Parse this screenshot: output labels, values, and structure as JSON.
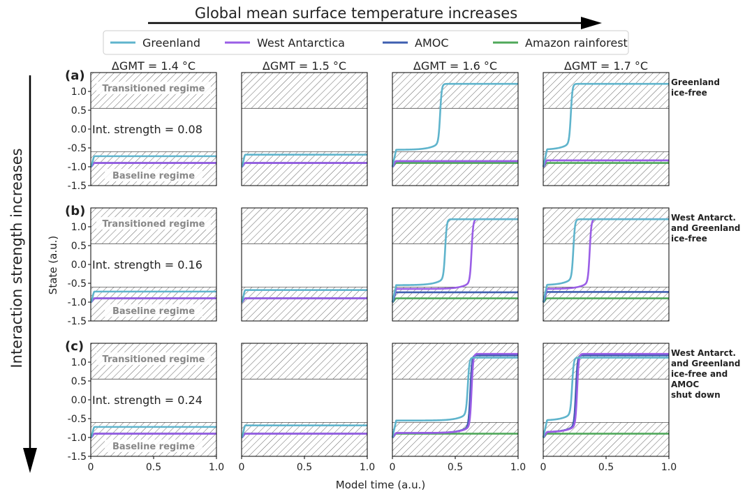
{
  "header": {
    "top_arrow_label": "Global mean surface temperature increases",
    "left_arrow_label": "Interaction strength increases",
    "ylabel": "State (a.u.)",
    "xlabel": "Model time (a.u.)"
  },
  "legend": [
    {
      "name": "Greenland",
      "color": "#5fb4cc"
    },
    {
      "name": "West Antarctica",
      "color": "#9a5ee6"
    },
    {
      "name": "AMOC",
      "color": "#3e5fb0"
    },
    {
      "name": "Amazon rainforest",
      "color": "#4fa85a"
    }
  ],
  "columns": [
    "ΔGMT = 1.4 °C",
    "ΔGMT = 1.5 °C",
    "ΔGMT = 1.6 °C",
    "ΔGMT = 1.7 °C"
  ],
  "rows": [
    {
      "label": "(a)",
      "strength": "Int. strength = 0.08",
      "annotation": [
        "Greenland",
        "ice-free"
      ]
    },
    {
      "label": "(b)",
      "strength": "Int. strength = 0.16",
      "annotation": [
        "West Antarct.",
        "and Greenland",
        "ice-free"
      ]
    },
    {
      "label": "(c)",
      "strength": "Int. strength = 0.24",
      "annotation": [
        "West Antarct.",
        "and Greenland",
        "ice-free and",
        "AMOC",
        "shut down"
      ]
    }
  ],
  "regimes": {
    "transitioned": "Transitioned regime",
    "baseline": "Baseline regime"
  },
  "chart_data": {
    "type": "line",
    "xlim": [
      0,
      1
    ],
    "ylim": [
      -1.5,
      1.5
    ],
    "xticks": [
      "0",
      "0.5",
      "1.0"
    ],
    "yticks": [
      "1.0",
      "0.5",
      "0.0",
      "-0.5",
      "-1.0",
      "-1.5"
    ],
    "transitioned_band": [
      0.55,
      1.5
    ],
    "baseline_band": [
      -1.5,
      -0.6
    ],
    "grid": false,
    "legend_placement": "top",
    "panels": [
      [
        {
          "series": [
            {
              "name": "Greenland",
              "plateau": -0.72
            },
            {
              "name": "West Antarctica",
              "plateau": -0.9
            },
            {
              "name": "AMOC",
              "plateau": -0.9
            },
            {
              "name": "Amazon rainforest",
              "plateau": -0.9
            }
          ]
        },
        {
          "series": [
            {
              "name": "Greenland",
              "plateau": -0.68
            },
            {
              "name": "West Antarctica",
              "plateau": -0.9
            },
            {
              "name": "AMOC",
              "plateau": -0.9
            },
            {
              "name": "Amazon rainforest",
              "plateau": -0.9
            }
          ]
        },
        {
          "series": [
            {
              "name": "Greenland",
              "tip_time": 0.38,
              "plateau": -0.55,
              "final": 1.2
            },
            {
              "name": "West Antarctica",
              "plateau": -0.85
            },
            {
              "name": "AMOC",
              "plateau": -0.85
            },
            {
              "name": "Amazon rainforest",
              "plateau": -0.9
            }
          ]
        },
        {
          "series": [
            {
              "name": "Greenland",
              "tip_time": 0.22,
              "plateau": -0.55,
              "final": 1.2
            },
            {
              "name": "West Antarctica",
              "plateau": -0.83
            },
            {
              "name": "AMOC",
              "plateau": -0.83
            },
            {
              "name": "Amazon rainforest",
              "plateau": -0.9
            }
          ]
        }
      ],
      [
        {
          "series": [
            {
              "name": "Greenland",
              "plateau": -0.72
            },
            {
              "name": "West Antarctica",
              "plateau": -0.9
            },
            {
              "name": "AMOC",
              "plateau": -0.9
            },
            {
              "name": "Amazon rainforest",
              "plateau": -0.9
            }
          ]
        },
        {
          "series": [
            {
              "name": "Greenland",
              "plateau": -0.68
            },
            {
              "name": "West Antarctica",
              "plateau": -0.9
            },
            {
              "name": "AMOC",
              "plateau": -0.9
            },
            {
              "name": "Amazon rainforest",
              "plateau": -0.9
            }
          ]
        },
        {
          "series": [
            {
              "name": "Greenland",
              "tip_time": 0.42,
              "plateau": -0.55,
              "final": 1.2
            },
            {
              "name": "West Antarctica",
              "tip_time": 0.63,
              "plateau": -0.65,
              "final": 1.2
            },
            {
              "name": "AMOC",
              "plateau": -0.74
            },
            {
              "name": "Amazon rainforest",
              "plateau": -0.9
            }
          ]
        },
        {
          "series": [
            {
              "name": "Greenland",
              "tip_time": 0.24,
              "plateau": -0.55,
              "final": 1.2
            },
            {
              "name": "West Antarctica",
              "tip_time": 0.37,
              "plateau": -0.65,
              "final": 1.2
            },
            {
              "name": "AMOC",
              "plateau": -0.73
            },
            {
              "name": "Amazon rainforest",
              "plateau": -0.9
            }
          ]
        }
      ],
      [
        {
          "series": [
            {
              "name": "Greenland",
              "plateau": -0.72
            },
            {
              "name": "West Antarctica",
              "plateau": -0.9
            },
            {
              "name": "AMOC",
              "plateau": -0.9
            },
            {
              "name": "Amazon rainforest",
              "plateau": -0.9
            }
          ]
        },
        {
          "series": [
            {
              "name": "Greenland",
              "plateau": -0.68
            },
            {
              "name": "West Antarctica",
              "plateau": -0.9
            },
            {
              "name": "AMOC",
              "plateau": -0.9
            },
            {
              "name": "Amazon rainforest",
              "plateau": -0.9
            }
          ]
        },
        {
          "series": [
            {
              "name": "Greenland",
              "tip_time": 0.6,
              "plateau": -0.55,
              "final": 1.12
            },
            {
              "name": "West Antarctica",
              "tip_time": 0.63,
              "plateau": -0.88,
              "final": 1.22
            },
            {
              "name": "AMOC",
              "tip_time": 0.62,
              "plateau": -0.88,
              "final": 1.18
            },
            {
              "name": "Amazon rainforest",
              "plateau": -0.9
            }
          ]
        },
        {
          "series": [
            {
              "name": "Greenland",
              "tip_time": 0.23,
              "plateau": -0.55,
              "final": 1.12
            },
            {
              "name": "West Antarctica",
              "tip_time": 0.27,
              "plateau": -0.86,
              "final": 1.22
            },
            {
              "name": "AMOC",
              "tip_time": 0.26,
              "plateau": -0.86,
              "final": 1.18
            },
            {
              "name": "Amazon rainforest",
              "plateau": -0.9
            }
          ]
        }
      ]
    ]
  }
}
